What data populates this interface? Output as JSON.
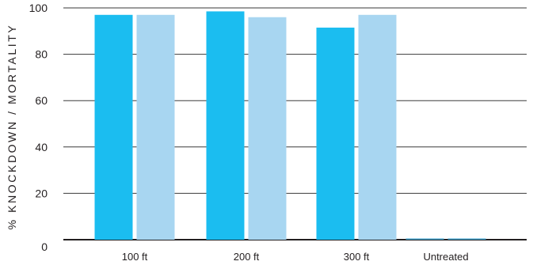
{
  "chart_data": {
    "type": "bar",
    "ylabel": "% KNOCKDOWN / MORTALITY",
    "xlabel": "",
    "ylim": [
      0,
      100
    ],
    "yticks": [
      0,
      20,
      40,
      60,
      80,
      100
    ],
    "grid": true,
    "categories": [
      "100 ft",
      "200 ft",
      "300 ft",
      "Untreated"
    ],
    "series": [
      {
        "values": [
          97,
          98.5,
          91.5,
          0.5
        ],
        "color": "#1bbdf0"
      },
      {
        "values": [
          97,
          96,
          97,
          0.3
        ],
        "color": "#a8d6f1"
      }
    ],
    "colors": {
      "grid": "#3a3a3a",
      "axis": "#231f20",
      "untreated_bar": "#3f9ec7"
    }
  }
}
